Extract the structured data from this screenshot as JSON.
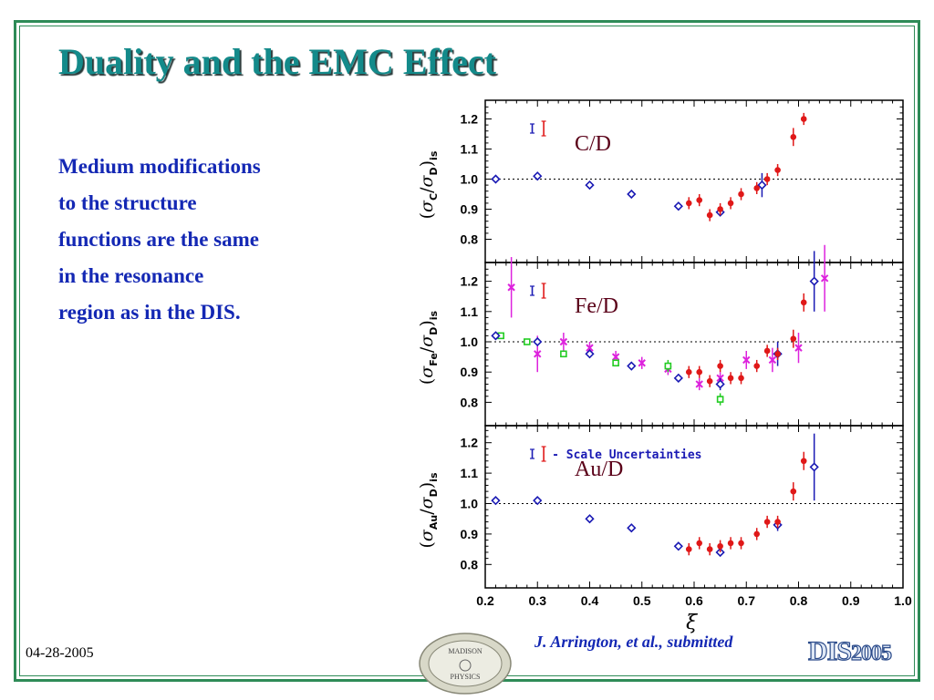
{
  "slide": {
    "title": "Duality and the EMC Effect",
    "body_lines": [
      "Medium modifications",
      "to the structure",
      "functions are the same",
      "in the resonance",
      "region as in the DIS."
    ],
    "date": "04-28-2005",
    "citation": "J. Arrington, et al., submitted",
    "logo_text": "DIS",
    "logo_year": "2005",
    "seal_text": [
      "MADISON",
      "PHYSICS"
    ],
    "colors": {
      "title": "#138a8a",
      "body": "#1428b4",
      "border": "#2e8b57",
      "dis_data": "#1a1ab4",
      "resonance_data": "#e01818",
      "fe_magenta": "#dd22dd",
      "fe_green": "#22cc22"
    }
  },
  "chart_data": [
    {
      "type": "scatter",
      "panel_label": "C/D",
      "ylabel_base": "σ",
      "ylabel_nucleus": "C",
      "ylabel_ref": "D",
      "ylabel_sub": "is",
      "xlabel": "ξ",
      "xlim": [
        0.2,
        1.0
      ],
      "ylim": [
        0.75,
        1.25
      ],
      "yticks": [
        "0.8",
        "0.9",
        "1.0",
        "1.1",
        "1.2"
      ],
      "reference_line": 1.0,
      "series": [
        {
          "style": "diamond",
          "color": "#1a1ab4",
          "points": [
            [
              0.22,
              1.0,
              0.01
            ],
            [
              0.3,
              1.01,
              0.01
            ],
            [
              0.4,
              0.98,
              0.01
            ],
            [
              0.48,
              0.95,
              0.01
            ],
            [
              0.57,
              0.91,
              0.01
            ],
            [
              0.65,
              0.89,
              0.01
            ],
            [
              0.73,
              0.98,
              0.04
            ]
          ]
        },
        {
          "style": "dot",
          "color": "#e01818",
          "points": [
            [
              0.59,
              0.92,
              0.02
            ],
            [
              0.61,
              0.93,
              0.02
            ],
            [
              0.63,
              0.88,
              0.02
            ],
            [
              0.65,
              0.9,
              0.02
            ],
            [
              0.67,
              0.92,
              0.02
            ],
            [
              0.69,
              0.95,
              0.02
            ],
            [
              0.72,
              0.97,
              0.02
            ],
            [
              0.74,
              1.0,
              0.02
            ],
            [
              0.76,
              1.03,
              0.02
            ],
            [
              0.79,
              1.14,
              0.03
            ],
            [
              0.81,
              1.2,
              0.02
            ]
          ]
        }
      ]
    },
    {
      "type": "scatter",
      "panel_label": "Fe/D",
      "ylabel_base": "σ",
      "ylabel_nucleus": "Fe",
      "ylabel_ref": "D",
      "ylabel_sub": "is",
      "xlabel": "ξ",
      "xlim": [
        0.2,
        1.0
      ],
      "ylim": [
        0.75,
        1.25
      ],
      "yticks": [
        "0.8",
        "0.9",
        "1.0",
        "1.1",
        "1.2"
      ],
      "reference_line": 1.0,
      "series": [
        {
          "style": "cross",
          "color": "#dd22dd",
          "points": [
            [
              0.25,
              1.18,
              0.1
            ],
            [
              0.3,
              0.96,
              0.06
            ],
            [
              0.35,
              1.0,
              0.03
            ],
            [
              0.4,
              0.98,
              0.02
            ],
            [
              0.45,
              0.95,
              0.02
            ],
            [
              0.5,
              0.93,
              0.02
            ],
            [
              0.55,
              0.91,
              0.02
            ],
            [
              0.61,
              0.86,
              0.02
            ],
            [
              0.65,
              0.88,
              0.02
            ],
            [
              0.7,
              0.94,
              0.03
            ],
            [
              0.75,
              0.94,
              0.04
            ],
            [
              0.8,
              0.98,
              0.05
            ],
            [
              0.85,
              1.21,
              0.11
            ]
          ]
        },
        {
          "style": "square",
          "color": "#22cc22",
          "points": [
            [
              0.23,
              1.02,
              0.01
            ],
            [
              0.28,
              1.0,
              0.01
            ],
            [
              0.35,
              0.96,
              0.01
            ],
            [
              0.45,
              0.93,
              0.01
            ],
            [
              0.55,
              0.92,
              0.02
            ],
            [
              0.65,
              0.81,
              0.02
            ]
          ]
        },
        {
          "style": "diamond",
          "color": "#1a1ab4",
          "points": [
            [
              0.22,
              1.02,
              0.01
            ],
            [
              0.3,
              1.0,
              0.01
            ],
            [
              0.4,
              0.96,
              0.01
            ],
            [
              0.48,
              0.92,
              0.01
            ],
            [
              0.57,
              0.88,
              0.01
            ],
            [
              0.65,
              0.86,
              0.02
            ],
            [
              0.76,
              0.96,
              0.04
            ],
            [
              0.83,
              1.2,
              0.1
            ]
          ]
        },
        {
          "style": "dot",
          "color": "#e01818",
          "points": [
            [
              0.59,
              0.9,
              0.02
            ],
            [
              0.61,
              0.9,
              0.02
            ],
            [
              0.63,
              0.87,
              0.02
            ],
            [
              0.65,
              0.92,
              0.02
            ],
            [
              0.67,
              0.88,
              0.02
            ],
            [
              0.69,
              0.88,
              0.02
            ],
            [
              0.72,
              0.92,
              0.02
            ],
            [
              0.74,
              0.97,
              0.02
            ],
            [
              0.76,
              0.96,
              0.02
            ],
            [
              0.79,
              1.01,
              0.03
            ],
            [
              0.81,
              1.13,
              0.03
            ]
          ]
        }
      ]
    },
    {
      "type": "scatter",
      "panel_label": "Au/D",
      "ylabel_base": "σ",
      "ylabel_nucleus": "Au",
      "ylabel_ref": "D",
      "ylabel_sub": "is",
      "xlabel": "ξ",
      "xlim": [
        0.2,
        1.0
      ],
      "ylim": [
        0.75,
        1.25
      ],
      "yticks": [
        "0.8",
        "0.9",
        "1.0",
        "1.1",
        "1.2"
      ],
      "xticks": [
        "0.2",
        "0.3",
        "0.4",
        "0.5",
        "0.6",
        "0.7",
        "0.8",
        "0.9",
        "1.0"
      ],
      "reference_line": 1.0,
      "legend_text": "- Scale Uncertainties",
      "series": [
        {
          "style": "diamond",
          "color": "#1a1ab4",
          "points": [
            [
              0.22,
              1.01,
              0.01
            ],
            [
              0.3,
              1.01,
              0.01
            ],
            [
              0.4,
              0.95,
              0.01
            ],
            [
              0.48,
              0.92,
              0.01
            ],
            [
              0.57,
              0.86,
              0.01
            ],
            [
              0.65,
              0.84,
              0.01
            ],
            [
              0.76,
              0.93,
              0.02
            ],
            [
              0.83,
              1.12,
              0.11
            ]
          ]
        },
        {
          "style": "dot",
          "color": "#e01818",
          "points": [
            [
              0.59,
              0.85,
              0.02
            ],
            [
              0.61,
              0.87,
              0.02
            ],
            [
              0.63,
              0.85,
              0.02
            ],
            [
              0.65,
              0.86,
              0.02
            ],
            [
              0.67,
              0.87,
              0.02
            ],
            [
              0.69,
              0.87,
              0.02
            ],
            [
              0.72,
              0.9,
              0.02
            ],
            [
              0.74,
              0.94,
              0.02
            ],
            [
              0.76,
              0.94,
              0.02
            ],
            [
              0.79,
              1.04,
              0.03
            ],
            [
              0.81,
              1.14,
              0.03
            ]
          ]
        }
      ]
    }
  ]
}
